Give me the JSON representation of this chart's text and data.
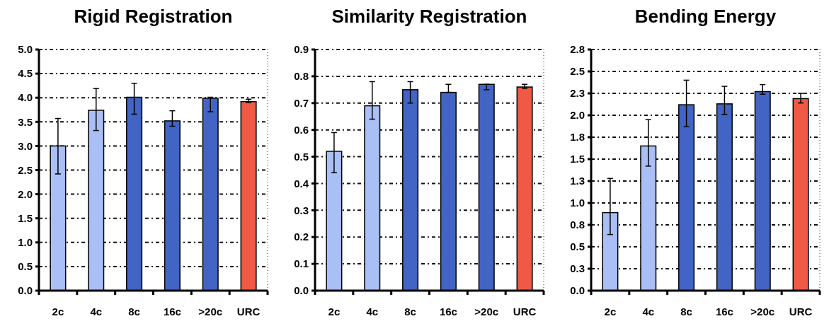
{
  "chart_data": [
    {
      "type": "bar",
      "title": "Rigid Registration",
      "categories": [
        "2c",
        "4c",
        "8c",
        "16c",
        ">20c",
        "URC"
      ],
      "values": [
        3.0,
        3.74,
        4.01,
        3.52,
        3.99,
        3.92
      ],
      "colors": [
        "#a9bff5",
        "#a9bff5",
        "#4264c4",
        "#4264c4",
        "#4264c4",
        "#f05a45"
      ],
      "errors": [
        [
          2.42,
          3.57
        ],
        [
          3.32,
          4.19
        ],
        [
          3.66,
          4.3
        ],
        [
          3.41,
          3.73
        ],
        [
          3.71,
          4.01
        ],
        [
          3.9,
          3.97
        ]
      ],
      "ylim": [
        0,
        5
      ],
      "yticks": [
        {
          "value": 0,
          "label": "0.0"
        },
        0.5,
        {
          "value": 1,
          "label": "1.0"
        },
        1.5,
        {
          "value": 2,
          "label": "2.0"
        },
        2.5,
        {
          "value": 3,
          "label": "3.0"
        },
        3.5,
        {
          "value": 4,
          "label": "4.0"
        },
        4.5,
        {
          "value": 5,
          "label": "5.0"
        }
      ],
      "grid": "y"
    },
    {
      "type": "bar",
      "title": "Similarity Registration",
      "categories": [
        "2c",
        "4c",
        "8c",
        "16c",
        ">20c",
        "URC"
      ],
      "values": [
        0.52,
        0.69,
        0.75,
        0.74,
        0.77,
        0.76
      ],
      "colors": [
        "#a9bff5",
        "#a9bff5",
        "#4264c4",
        "#4264c4",
        "#4264c4",
        "#f05a45"
      ],
      "errors": [
        [
          0.44,
          0.59
        ],
        [
          0.64,
          0.78
        ],
        [
          0.7,
          0.78
        ],
        [
          0.74,
          0.77
        ],
        [
          0.75,
          0.77
        ],
        [
          0.755,
          0.77
        ]
      ],
      "ylim": [
        0,
        0.9
      ],
      "yticks": [
        {
          "value": 0,
          "label": "0.0"
        },
        0.1,
        0.2,
        0.3,
        0.4,
        0.5,
        0.6,
        0.7,
        0.8,
        0.9
      ],
      "grid": "y"
    },
    {
      "type": "bar",
      "title": "Bending Energy",
      "categories": [
        "2c",
        "4c",
        "8c",
        "16c",
        ">20c",
        "URC"
      ],
      "values": [
        0.89,
        1.65,
        2.12,
        2.13,
        2.27,
        2.19
      ],
      "colors": [
        "#a9bff5",
        "#a9bff5",
        "#4264c4",
        "#4264c4",
        "#4264c4",
        "#f05a45"
      ],
      "errors": [
        [
          0.64,
          1.28
        ],
        [
          1.42,
          1.95
        ],
        [
          1.87,
          2.4
        ],
        [
          2.01,
          2.33
        ],
        [
          2.24,
          2.35
        ],
        [
          2.14,
          2.25
        ]
      ],
      "ylim": [
        0,
        2.75
      ],
      "yticks": [
        {
          "value": 0,
          "label": "0.0"
        },
        {
          "value": 0.25,
          "label": "0.3"
        },
        {
          "value": 0.5,
          "label": "0.5"
        },
        {
          "value": 0.75,
          "label": "0.8"
        },
        {
          "value": 1,
          "label": "1.0"
        },
        {
          "value": 1.25,
          "label": "1.3"
        },
        {
          "value": 1.5,
          "label": "1.5"
        },
        {
          "value": 1.75,
          "label": "1.8"
        },
        {
          "value": 2,
          "label": "2.0"
        },
        {
          "value": 2.25,
          "label": "2.3"
        },
        {
          "value": 2.5,
          "label": "2.5"
        },
        {
          "value": 2.75,
          "label": "2.8"
        }
      ],
      "grid": "y"
    }
  ]
}
